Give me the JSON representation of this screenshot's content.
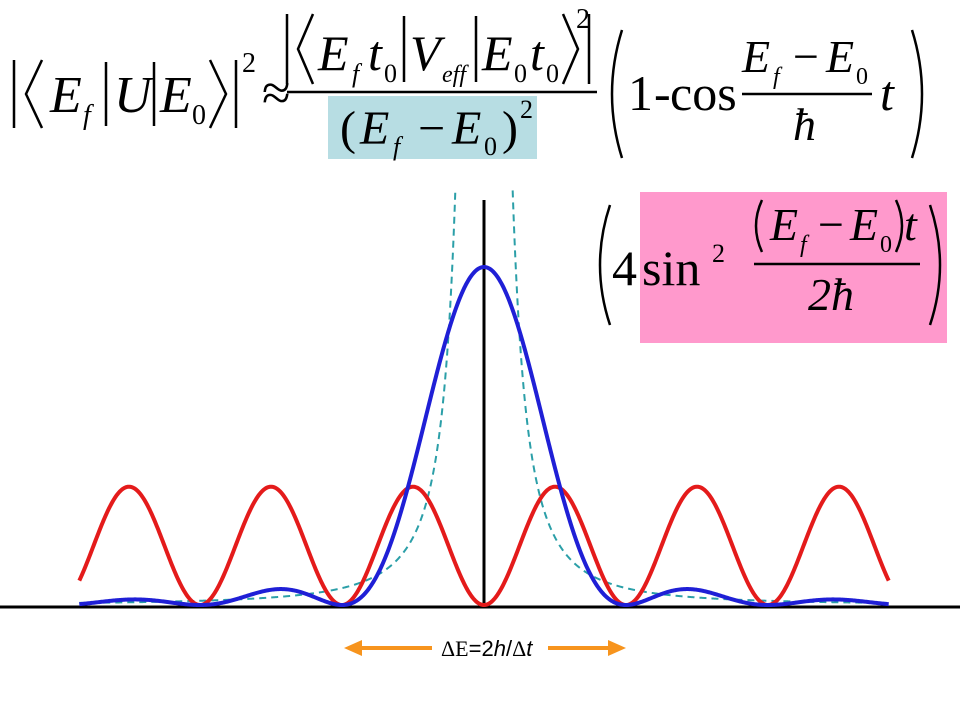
{
  "equation": {
    "lhs": {
      "bra_symbol": "E",
      "bra_sub": "f",
      "operator": "U",
      "ket_symbol": "E",
      "ket_sub": "0",
      "power": "2"
    },
    "relation": "≈",
    "numerator": {
      "bra": "E",
      "bra_sub": "f",
      "t": "t",
      "t_sub": "0",
      "op": "V",
      "op_sub": "eff",
      "ket": "E",
      "ket_sub": "0",
      "t2": "t",
      "t2_sub": "0",
      "power": "2"
    },
    "denominator": {
      "open": "(",
      "E1": "E",
      "E1_sub": "f",
      "minus": "−",
      "E2": "E",
      "E2_sub": "0",
      "close": ")",
      "power": "2"
    },
    "bracket": {
      "one": "1",
      "dash": "-",
      "cos": "cos",
      "frac_num_E1": "E",
      "frac_num_E1_sub": "f",
      "frac_num_minus": "−",
      "frac_num_E2": "E",
      "frac_num_E2_sub": "0",
      "frac_den": "ħ",
      "t": "t"
    },
    "denominator_highlight_color": "#b7dde3"
  },
  "identity": {
    "four": "4",
    "sin": "sin",
    "power": "2",
    "num_E1": "E",
    "num_E1_sub": "f",
    "num_minus": "−",
    "num_E2": "E",
    "num_E2_sub": "0",
    "num_t": "t",
    "den": "2ħ",
    "highlight_color": "#ff99cc"
  },
  "annotation": {
    "delta1": "Δ",
    "E": "E",
    "eq": "=2",
    "h": "h",
    "slash": "/",
    "delta2": "Δ",
    "t": "t",
    "color": "#f7941d"
  },
  "chart_data": {
    "type": "line",
    "x_domain": [
      -2.85,
      2.85
    ],
    "y_domain": [
      0,
      1.0
    ],
    "grid": false,
    "series": [
      {
        "style": "dashed",
        "color": "#2b9fa8",
        "formula": "0.05 / x^2"
      },
      {
        "style": "solid",
        "color": "#e41b1b",
        "formula": "sin^2(pi x) * 0.35"
      },
      {
        "style": "solid",
        "color": "#1f1fd6",
        "formula": "sinc^2(x) (sin(pi x)/(pi x))^2"
      }
    ]
  }
}
